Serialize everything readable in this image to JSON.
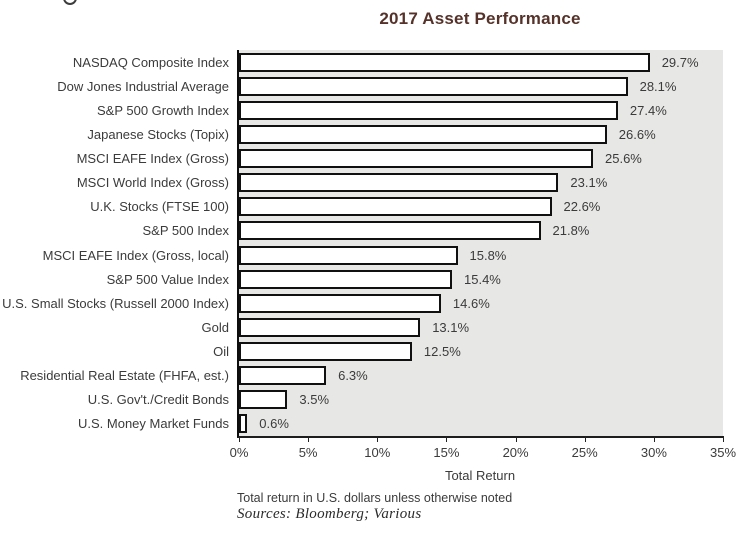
{
  "chart_data": {
    "type": "bar",
    "orientation": "horizontal",
    "title": "2017 Asset Performance",
    "categories": [
      "NASDAQ Composite Index",
      "Dow Jones Industrial Average",
      "S&P 500 Growth Index",
      "Japanese Stocks (Topix)",
      "MSCI EAFE Index (Gross)",
      "MSCI World Index (Gross)",
      "U.K. Stocks (FTSE 100)",
      "S&P 500 Index",
      "MSCI EAFE Index (Gross, local)",
      "S&P 500 Value Index",
      "U.S. Small Stocks (Russell 2000 Index)",
      "Gold",
      "Oil",
      "Residential Real Estate (FHFA, est.)",
      "U.S. Gov't./Credit Bonds",
      "U.S. Money Market Funds"
    ],
    "values": [
      29.7,
      28.1,
      27.4,
      26.6,
      25.6,
      23.1,
      22.6,
      21.8,
      15.8,
      15.4,
      14.6,
      13.1,
      12.5,
      6.3,
      3.5,
      0.6
    ],
    "value_labels": [
      "29.7%",
      "28.1%",
      "27.4%",
      "26.6%",
      "25.6%",
      "23.1%",
      "22.6%",
      "21.8%",
      "15.8%",
      "15.4%",
      "14.6%",
      "13.1%",
      "12.5%",
      "6.3%",
      "3.5%",
      "0.6%"
    ],
    "xlabel": "Total Return",
    "xlim": [
      0,
      35
    ],
    "x_ticks": [
      0,
      5,
      10,
      15,
      20,
      25,
      30,
      35
    ],
    "x_tick_labels": [
      "0%",
      "5%",
      "10%",
      "15%",
      "20%",
      "25%",
      "30%",
      "35%"
    ],
    "grid": false,
    "legend": null,
    "colors": {
      "title": "#55322a",
      "plot_background": "#e7e7e6",
      "bar_fill": "#ffffff",
      "bar_border": "#101010",
      "text": "#3b3b3b"
    }
  },
  "footer": {
    "note": "Total return in U.S. dollars unless otherwise noted",
    "sources": "Sources: Bloomberg; Various"
  }
}
